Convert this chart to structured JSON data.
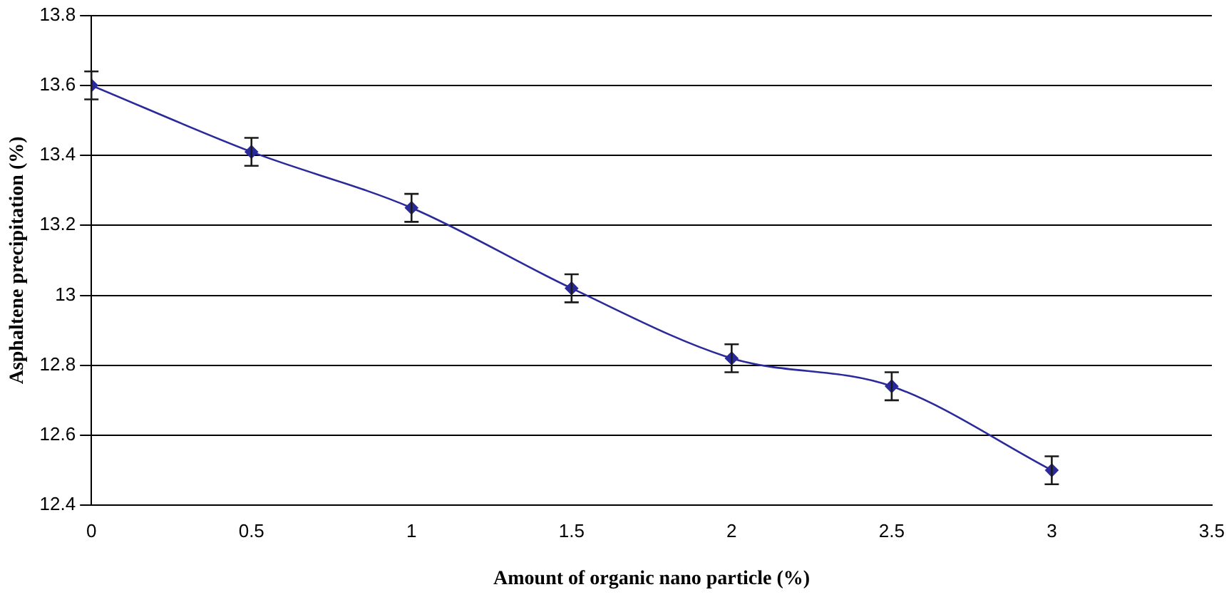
{
  "chart_data": {
    "type": "line",
    "xlabel": "Amount of organic nano particle (%)",
    "ylabel": "Asphaltene precipitation (%)",
    "x": [
      0,
      0.5,
      1,
      1.5,
      2,
      2.5,
      3
    ],
    "series": [
      {
        "color": "#2a2a9a",
        "values": [
          13.6,
          13.41,
          13.25,
          13.02,
          12.82,
          12.74,
          12.5
        ],
        "errors": [
          0.04,
          0.04,
          0.04,
          0.04,
          0.04,
          0.04,
          0.04
        ]
      }
    ],
    "xlim": [
      0,
      3.5
    ],
    "xticks": [
      0,
      0.5,
      1,
      1.5,
      2,
      2.5,
      3,
      3.5
    ],
    "ylim": [
      12.4,
      13.8
    ],
    "yticks": [
      12.4,
      12.6,
      12.8,
      13,
      13.2,
      13.4,
      13.6,
      13.8
    ],
    "grid": "y",
    "marker": "diamond",
    "line_style": "solid",
    "legend": false
  }
}
